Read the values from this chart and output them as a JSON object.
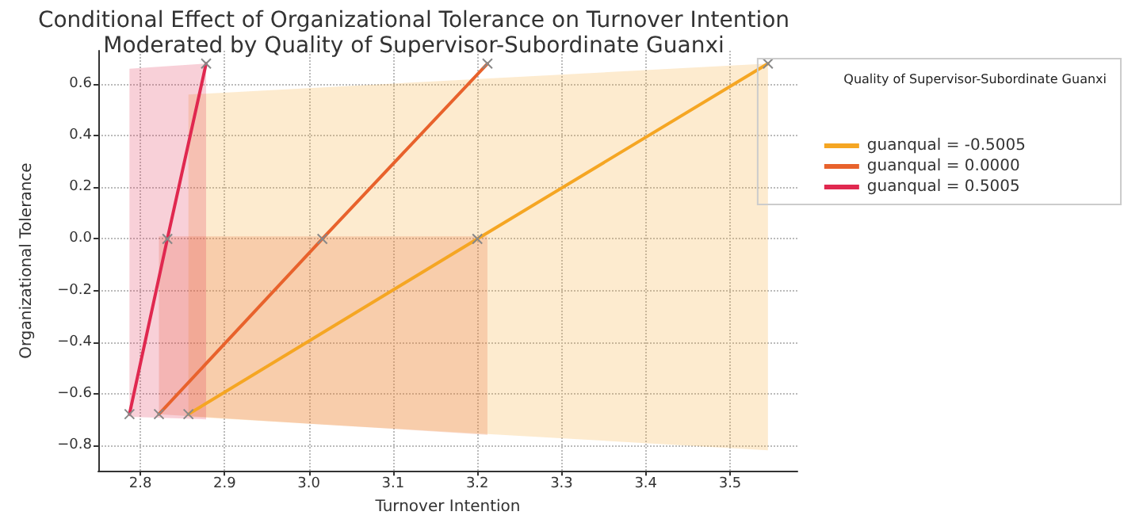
{
  "chart_data": {
    "type": "line",
    "title": "Conditional Effect of Organizational Tolerance on Turnover Intention\nModerated by Quality of Supervisor-Subordinate Guanxi",
    "xlabel": "Turnover Intention",
    "ylabel": "Organizational Tolerance",
    "legend_title": "Quality of Supervisor-Subordinate Guanxi",
    "series": [
      {
        "name": "guanqual = -0.5005",
        "color": "#f5a623",
        "x": [
          2.857,
          3.2,
          3.545
        ],
        "values": [
          -0.68,
          0,
          0.68
        ],
        "lower": [
          -0.69,
          -0.755,
          -0.82
        ],
        "upper": [
          0.56,
          0.62,
          0.68
        ]
      },
      {
        "name": "guanqual = 0.0000",
        "color": "#e8622c",
        "x": [
          2.822,
          3.016,
          3.212
        ],
        "values": [
          -0.68,
          0,
          0.68
        ],
        "lower": [
          -0.68,
          -0.72,
          -0.76
        ],
        "upper": [
          0.01,
          0.01,
          0.01
        ]
      },
      {
        "name": "guanqual = 0.5005",
        "color": "#e0284f",
        "x": [
          2.787,
          2.832,
          2.878
        ],
        "values": [
          -0.68,
          0,
          0.68
        ],
        "lower": [
          -0.69,
          -0.695,
          -0.7
        ],
        "upper": [
          0.66,
          0.67,
          0.68
        ]
      }
    ],
    "xlim": [
      2.75,
      3.58
    ],
    "xticks": [
      2.8,
      2.9,
      {
        "value": 3,
        "label": "3.0"
      },
      3.1,
      3.2,
      3.3,
      3.4,
      3.5
    ],
    "ylim": [
      -0.9,
      0.73
    ],
    "yticks": [
      -0.8,
      -0.6,
      -0.4,
      -0.2,
      {
        "value": 0,
        "label": "0.0"
      },
      0.2,
      0.4,
      0.6
    ],
    "grid": true,
    "legend": "right",
    "marker": "cross",
    "line_style": "solid"
  }
}
